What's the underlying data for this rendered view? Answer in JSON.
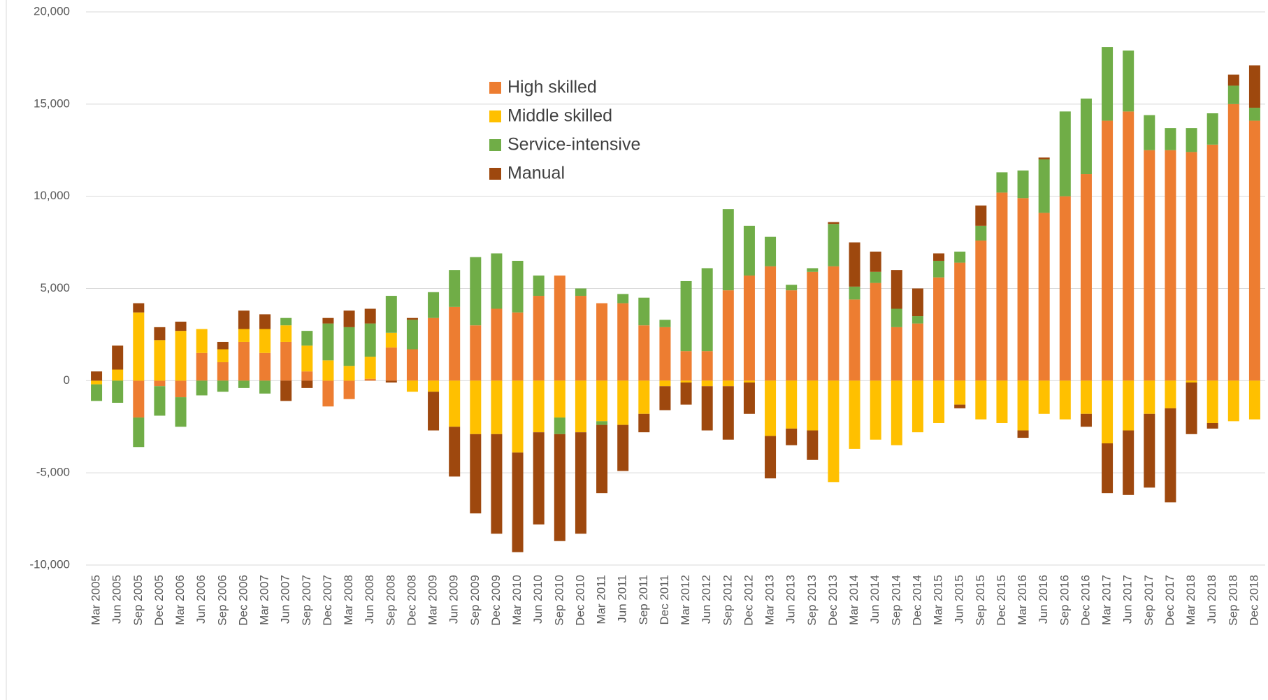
{
  "chart_data": {
    "type": "stacked_bar",
    "categories": [
      "Mar 2005",
      "Jun 2005",
      "Sep 2005",
      "Dec 2005",
      "Mar 2006",
      "Jun 2006",
      "Sep 2006",
      "Dec 2006",
      "Mar 2007",
      "Jun 2007",
      "Sep 2007",
      "Dec 2007",
      "Mar 2008",
      "Jun 2008",
      "Sep 2008",
      "Dec 2008",
      "Mar 2009",
      "Jun 2009",
      "Sep 2009",
      "Dec 2009",
      "Mar 2010",
      "Jun 2010",
      "Sep 2010",
      "Dec 2010",
      "Mar 2011",
      "Jun 2011",
      "Sep 2011",
      "Dec 2011",
      "Mar 2012",
      "Jun 2012",
      "Sep 2012",
      "Dec 2012",
      "Mar 2013",
      "Jun 2013",
      "Sep 2013",
      "Dec 2013",
      "Mar 2014",
      "Jun 2014",
      "Sep 2014",
      "Dec 2014",
      "Mar 2015",
      "Jun 2015",
      "Sep 2015",
      "Dec 2015",
      "Mar 2016",
      "Jun 2016",
      "Sep 2016",
      "Dec 2016",
      "Mar 2017",
      "Jun 2017",
      "Sep 2017",
      "Dec 2017",
      "Mar 2018",
      "Jun 2018",
      "Sep 2018",
      "Dec 2018"
    ],
    "series": [
      {
        "name": "High skilled",
        "color": "#ed7d31",
        "values": [
          0,
          0,
          -2000,
          -300,
          -900,
          1500,
          1000,
          2100,
          1500,
          2100,
          500,
          -1400,
          -1000,
          100,
          1800,
          1700,
          3400,
          4000,
          3000,
          3900,
          3700,
          4600,
          5700,
          4600,
          4200,
          4200,
          3000,
          2900,
          1600,
          1600,
          4900,
          5700,
          6200,
          4900,
          5900,
          6200,
          4400,
          5300,
          2900,
          3100,
          5600,
          6400,
          7600,
          10200,
          9900,
          9100,
          10000,
          11200,
          14100,
          14600,
          12500,
          12500,
          12400,
          12800,
          15000,
          14100
        ]
      },
      {
        "name": "Middle skilled",
        "color": "#ffc000",
        "values": [
          -200,
          600,
          3700,
          2200,
          2700,
          1300,
          700,
          700,
          1300,
          900,
          1400,
          1100,
          800,
          1200,
          800,
          -600,
          -600,
          -2500,
          -2900,
          -2900,
          -3900,
          -2800,
          -2000,
          -2800,
          -2200,
          -2400,
          -1800,
          -300,
          -100,
          -300,
          -300,
          -100,
          -3000,
          -2600,
          -2700,
          -5500,
          -3700,
          -3200,
          -3500,
          -2800,
          -2300,
          -1300,
          -2100,
          -2300,
          -2700,
          -1800,
          -2100,
          -1800,
          -3400,
          -2700,
          -1800,
          -1500,
          -100,
          -2300,
          -2200,
          -2100
        ]
      },
      {
        "name": "Service-intensive",
        "color": "#70ad47",
        "values": [
          -900,
          -1200,
          -1600,
          -1600,
          -1600,
          -800,
          -600,
          -400,
          -700,
          400,
          800,
          2000,
          2100,
          1800,
          2000,
          1600,
          1400,
          2000,
          3700,
          3000,
          2800,
          1100,
          -900,
          400,
          -200,
          500,
          1500,
          400,
          3800,
          4500,
          4400,
          2700,
          1600,
          300,
          200,
          2300,
          700,
          600,
          1000,
          400,
          900,
          600,
          800,
          1100,
          1500,
          2900,
          4600,
          4100,
          4000,
          3300,
          1900,
          1200,
          1300,
          1700,
          1000,
          700
        ]
      },
      {
        "name": "Manual",
        "color": "#9e480e",
        "values": [
          500,
          1300,
          500,
          700,
          500,
          0,
          400,
          1000,
          800,
          -1100,
          -400,
          300,
          900,
          800,
          -100,
          100,
          -2100,
          -2700,
          -4300,
          -5400,
          -5400,
          -5000,
          -5800,
          -5500,
          -3700,
          -2500,
          -1000,
          -1300,
          -1200,
          -2400,
          -2900,
          -1700,
          -2300,
          -900,
          -1600,
          100,
          2400,
          1100,
          2100,
          1500,
          400,
          -200,
          1100,
          0,
          -400,
          100,
          0,
          -700,
          -2700,
          -3500,
          -4000,
          -5100,
          -2800,
          -300,
          600,
          2300
        ]
      }
    ],
    "ylim": [
      -10000,
      20000
    ],
    "yticks": [
      {
        "value": -10000,
        "label": "-10,000"
      },
      {
        "value": -5000,
        "label": "-5,000"
      },
      0,
      {
        "value": 5000,
        "label": "5,000"
      },
      {
        "value": 10000,
        "label": "10,000"
      },
      {
        "value": 15000,
        "label": "15,000"
      },
      {
        "value": 20000,
        "label": "20,000"
      }
    ],
    "grid": true,
    "legend": "top-center"
  }
}
